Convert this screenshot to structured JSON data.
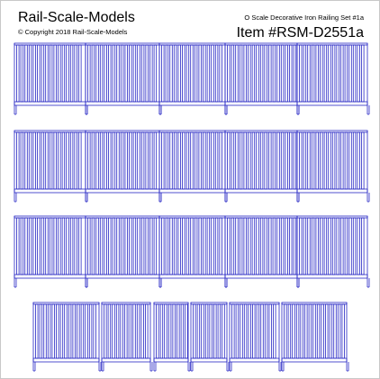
{
  "header": {
    "brand": "Rail-Scale-Models",
    "copyright": "© Copyright 2018 Rail-Scale-Models",
    "product": "O Scale Decorative Iron Railing Set #1a",
    "item": "Item #RSM-D2551a"
  }
}
